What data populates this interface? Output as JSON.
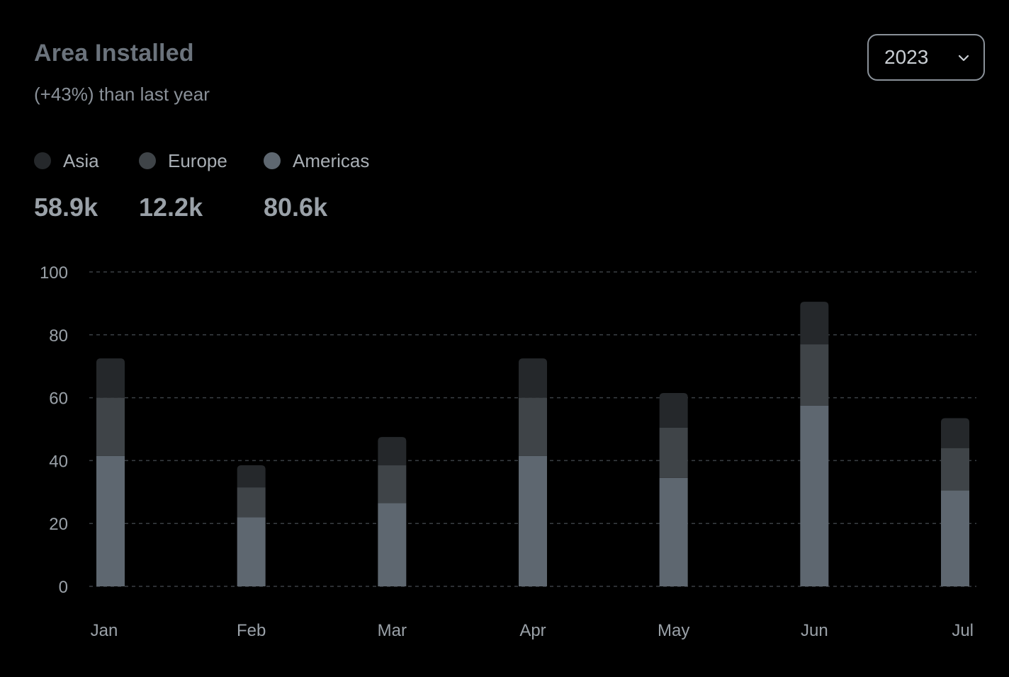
{
  "header": {
    "title": "Area Installed",
    "subtitle": "(+43%) than last year"
  },
  "year_select": {
    "value": "2023",
    "icon": "chevron-down-icon"
  },
  "legend": {
    "items": [
      {
        "label": "Asia",
        "value": "58.9k",
        "color": "#25282b"
      },
      {
        "label": "Europe",
        "value": "12.2k",
        "color": "#3f4448"
      },
      {
        "label": "Americas",
        "value": "80.6k",
        "color": "#5e6770"
      }
    ]
  },
  "chart_data": {
    "type": "bar",
    "stacked": true,
    "categories": [
      "Jan",
      "Feb",
      "Mar",
      "Apr",
      "May",
      "Jun",
      "Jul"
    ],
    "series": [
      {
        "name": "Americas",
        "values": [
          41.5,
          22,
          26.5,
          41.5,
          34.5,
          57.5,
          30.5
        ],
        "color": "#5e6770"
      },
      {
        "name": "Europe",
        "values": [
          18.5,
          9.5,
          12,
          18.5,
          16,
          19.5,
          13.5
        ],
        "color": "#3f4448"
      },
      {
        "name": "Asia",
        "values": [
          12.5,
          7,
          9,
          12.5,
          11,
          13.5,
          9.5
        ],
        "color": "#25282b"
      }
    ],
    "ylim": [
      0,
      100
    ],
    "yticks": [
      0,
      20,
      40,
      60,
      80,
      100
    ],
    "grid": true,
    "legend_position": "top-left"
  }
}
